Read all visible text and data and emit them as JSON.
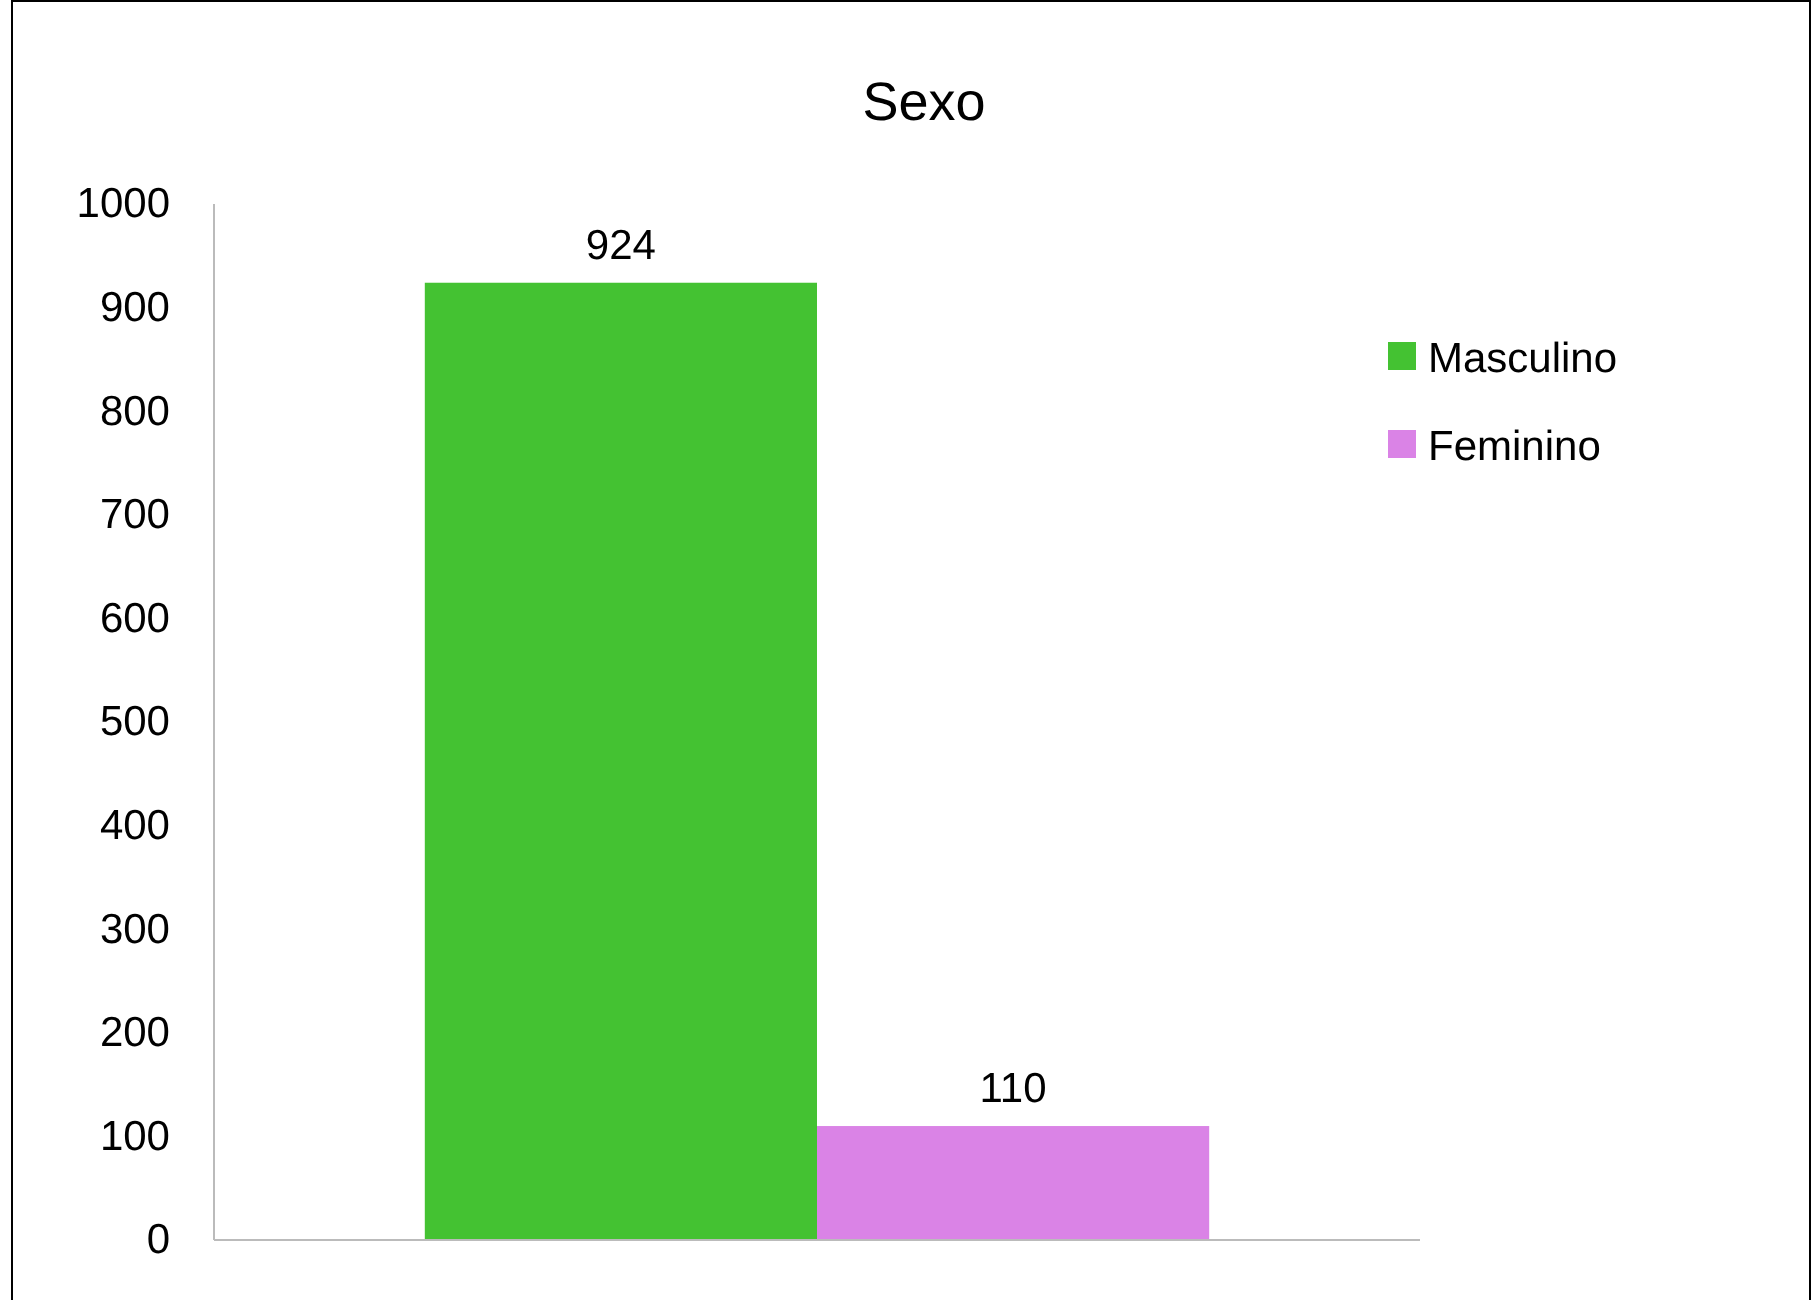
{
  "chart_data": {
    "type": "bar",
    "title": "Sexo",
    "categories": [
      null
    ],
    "series": [
      {
        "name": "Masculino",
        "color": "#44c232",
        "values": [
          924
        ]
      },
      {
        "name": "Feminino",
        "color": "#da83e6",
        "values": [
          110
        ]
      }
    ],
    "ylim": [
      0,
      1000
    ],
    "yticks": [
      0,
      100,
      200,
      300,
      400,
      500,
      600,
      700,
      800,
      900,
      1000
    ],
    "data_labels": true,
    "legend": "right",
    "grid": false
  }
}
